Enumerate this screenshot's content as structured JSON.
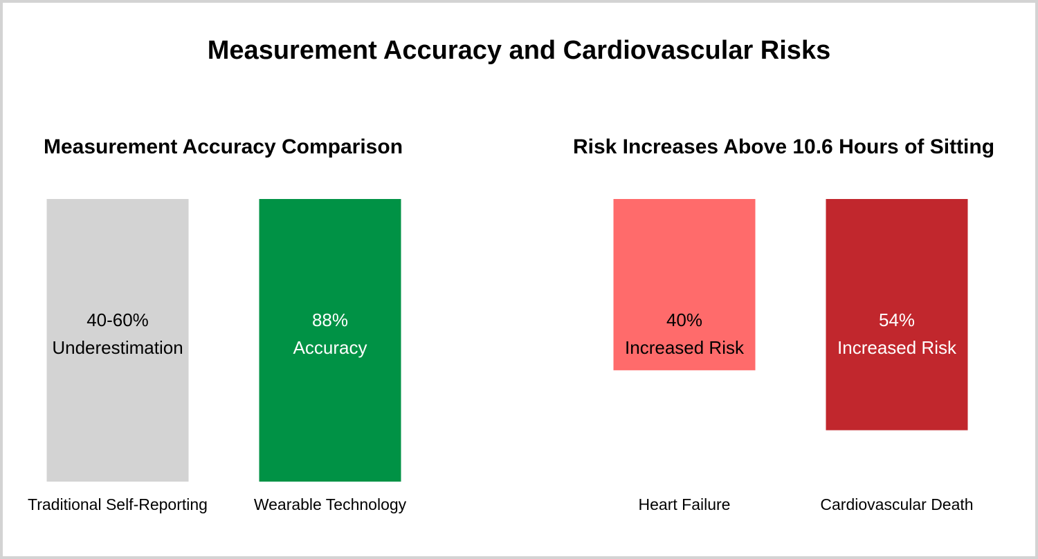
{
  "title": "Measurement Accuracy and Cardiovascular Risks",
  "chart_data": [
    {
      "type": "bar",
      "title": "Measurement Accuracy Comparison",
      "categories": [
        "Traditional Self-Reporting",
        "Wearable Technology"
      ],
      "values": [
        100,
        100
      ],
      "ylim": [
        0,
        100
      ],
      "labels": [
        [
          "40-60%",
          "Underestimation"
        ],
        [
          "88%",
          "Accuracy"
        ]
      ],
      "colors": [
        "#d3d3d3",
        "#009245"
      ],
      "label_colors": [
        "#000000",
        "#ffffff"
      ],
      "grid": false
    },
    {
      "type": "bar",
      "title": "Risk Increases Above 10.6 Hours of Sitting",
      "categories": [
        "Heart Failure",
        "Cardiovascular Death"
      ],
      "values": [
        40,
        54
      ],
      "ylim": [
        0,
        66
      ],
      "labels": [
        [
          "40%",
          "Increased Risk"
        ],
        [
          "54%",
          "Increased Risk"
        ]
      ],
      "colors": [
        "#ff6b6b",
        "#c1272d"
      ],
      "label_colors": [
        "#000000",
        "#ffffff"
      ],
      "grid": false
    }
  ]
}
